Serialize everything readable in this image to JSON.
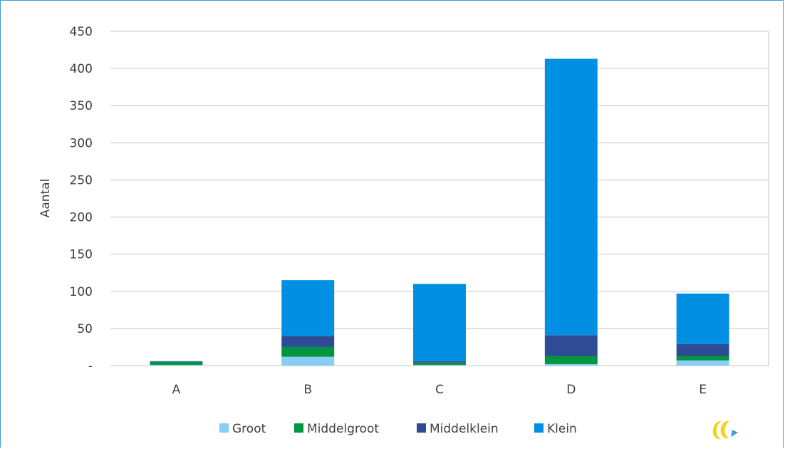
{
  "chart_data": {
    "type": "bar",
    "stacked": true,
    "title": "",
    "xlabel": "",
    "ylabel": "Aantal",
    "ylim": [
      0,
      450
    ],
    "yticks": [
      "-",
      "50",
      "100",
      "150",
      "200",
      "250",
      "300",
      "350",
      "400",
      "450"
    ],
    "ytick_values": [
      0,
      50,
      100,
      150,
      200,
      250,
      300,
      350,
      400,
      450
    ],
    "grid": true,
    "legend_position": "bottom",
    "categories": [
      "A",
      "B",
      "C",
      "D",
      "E"
    ],
    "series": [
      {
        "name": "Groot",
        "color": "#87cdf5",
        "values": [
          1,
          12,
          1,
          2,
          7
        ]
      },
      {
        "name": "Middelgroot",
        "color": "#00963f",
        "values": [
          4,
          13,
          3,
          11,
          6
        ]
      },
      {
        "name": "Middelklein",
        "color": "#2f4b95",
        "values": [
          1,
          15,
          2,
          28,
          16
        ]
      },
      {
        "name": "Klein",
        "color": "#008fe3",
        "values": [
          0,
          75,
          104,
          372,
          68
        ]
      }
    ]
  },
  "logo": {
    "icon": "logo-icon",
    "colors": [
      "#f2d21b",
      "#3f9ad8"
    ]
  }
}
